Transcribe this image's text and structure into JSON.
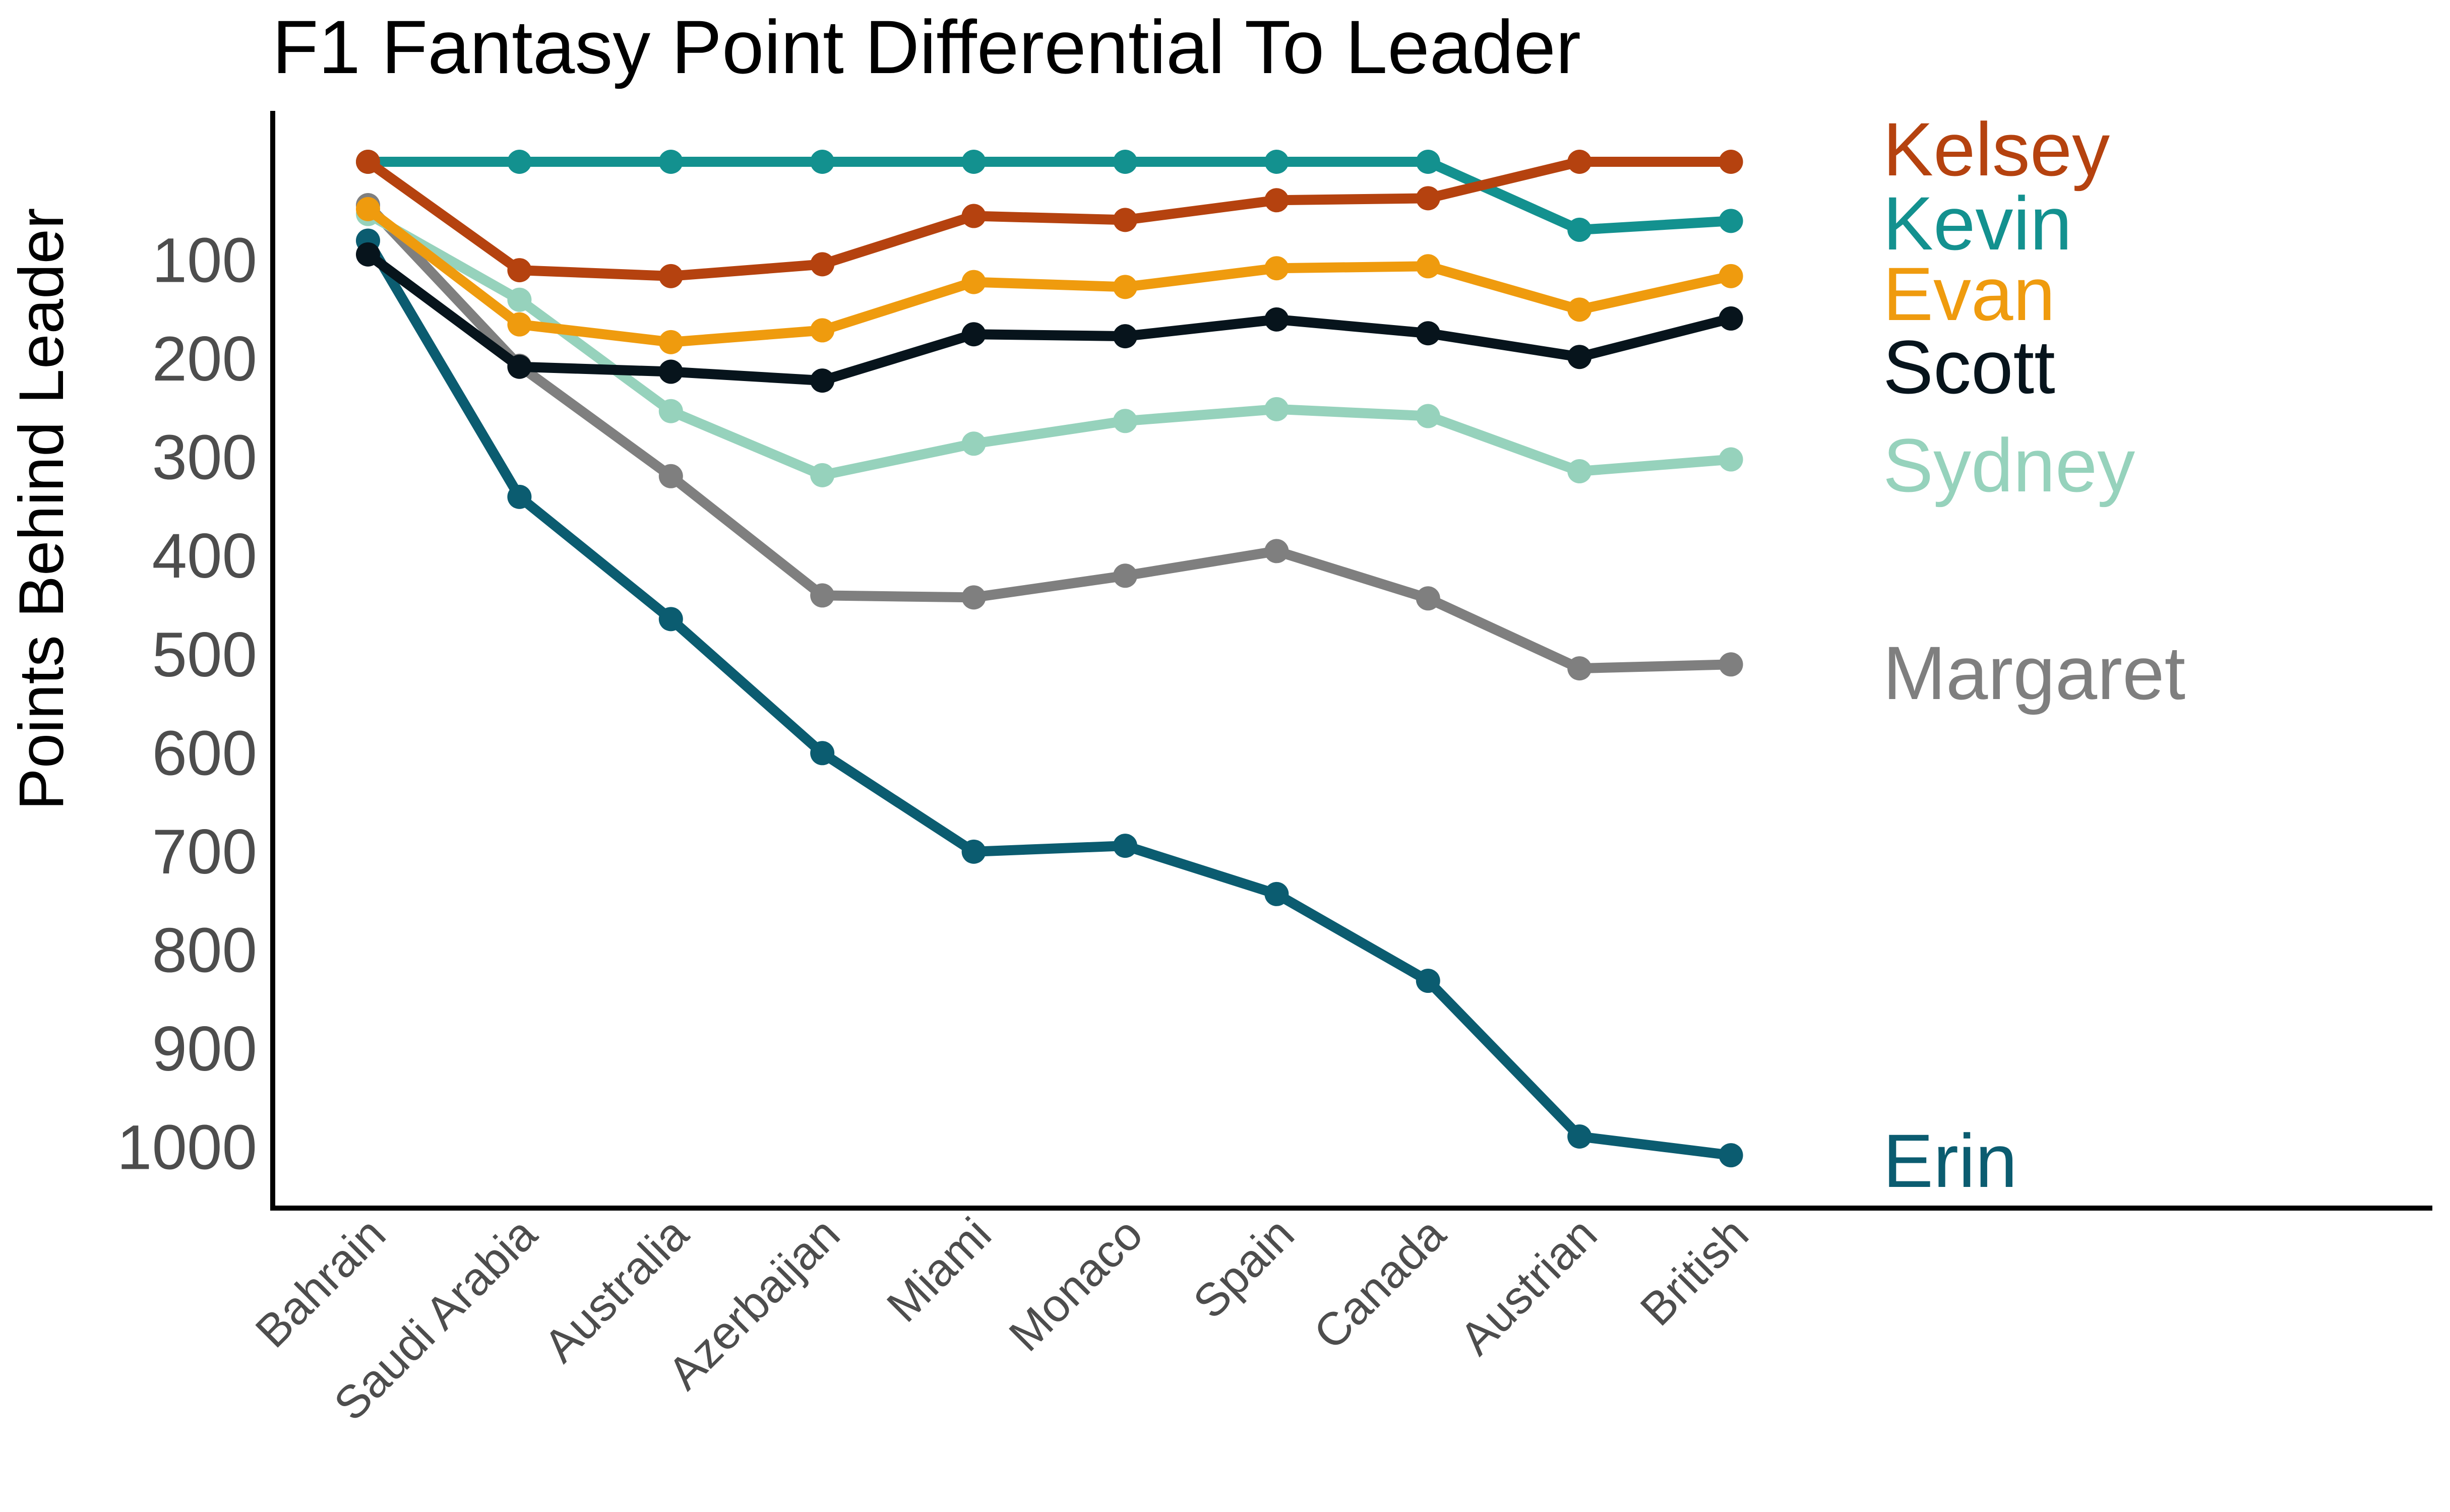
{
  "chart_data": {
    "type": "line",
    "title": "F1 Fantasy Point Differential To Leader",
    "xlabel": "",
    "ylabel": "Points Behind Leader",
    "y_reversed": true,
    "ylim": [
      0,
      1050
    ],
    "yticks": [
      100,
      200,
      300,
      400,
      500,
      600,
      700,
      800,
      900,
      1000
    ],
    "grid": false,
    "legend": "direct-labels-right",
    "categories": [
      "Bahrain",
      "Saudi Arabia",
      "Australia",
      "Azerbaijan",
      "Miami",
      "Monaco",
      "Spain",
      "Canada",
      "Austrian",
      "British"
    ],
    "series": [
      {
        "name": "Kelsey",
        "color": "#B5420F",
        "values": [
          0,
          110,
          116,
          104,
          55,
          59,
          39,
          37,
          0,
          0
        ]
      },
      {
        "name": "Kevin",
        "color": "#13918F",
        "values": [
          0,
          0,
          0,
          0,
          0,
          0,
          0,
          0,
          69,
          60
        ]
      },
      {
        "name": "Evan",
        "color": "#EF9B0E",
        "values": [
          48,
          165,
          183,
          171,
          122,
          127,
          108,
          106,
          150,
          116
        ]
      },
      {
        "name": "Scott",
        "color": "#07141C",
        "values": [
          94,
          208,
          213,
          222,
          175,
          177,
          160,
          174,
          198,
          159
        ]
      },
      {
        "name": "Sydney",
        "color": "#96D2BC",
        "values": [
          53,
          140,
          253,
          318,
          286,
          263,
          251,
          258,
          314,
          302
        ]
      },
      {
        "name": "Margaret",
        "color": "#7F7F7F",
        "values": [
          44,
          207,
          319,
          440,
          442,
          420,
          395,
          443,
          514,
          510
        ]
      },
      {
        "name": "Erin",
        "color": "#0B5C70",
        "values": [
          80,
          340,
          464,
          600,
          700,
          694,
          743,
          831,
          989,
          1008
        ]
      }
    ]
  }
}
